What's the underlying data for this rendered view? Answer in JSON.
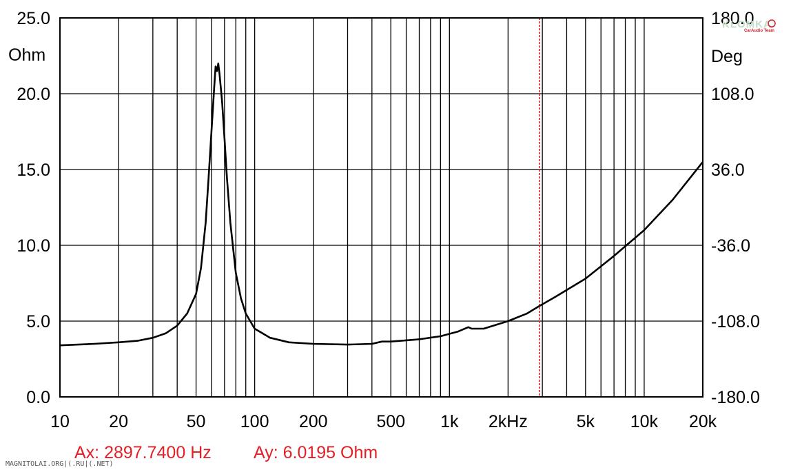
{
  "chart_data": {
    "type": "line",
    "x_scale": "log",
    "xlim": [
      10,
      20000
    ],
    "ylim": [
      0,
      25
    ],
    "y2lim": [
      -180,
      180
    ],
    "left_unit": "Ohm",
    "right_unit": "Deg",
    "y_ticks": [
      "0.0",
      "5.0",
      "10.0",
      "15.0",
      "20.0",
      "25.0"
    ],
    "y2_ticks": [
      "-180.0",
      "-108.0",
      "-36.0",
      "36.0",
      "108.0",
      "180.0"
    ],
    "x_ticks": [
      {
        "value": 10,
        "label": "10"
      },
      {
        "value": 20,
        "label": "20"
      },
      {
        "value": 50,
        "label": "50"
      },
      {
        "value": 100,
        "label": "100"
      },
      {
        "value": 200,
        "label": "200"
      },
      {
        "value": 500,
        "label": "500"
      },
      {
        "value": 1000,
        "label": "1k"
      },
      {
        "value": 2000,
        "label": "2kHz"
      },
      {
        "value": 5000,
        "label": "5k"
      },
      {
        "value": 10000,
        "label": "10k"
      },
      {
        "value": 20000,
        "label": "20k"
      }
    ],
    "grid": true,
    "cursor": {
      "x": 2897.74,
      "y": 6.0195,
      "readout_x": "Ax: 2897.7400 Hz",
      "readout_y": "Ay: 6.0195 Ohm"
    },
    "series": [
      {
        "points": [
          [
            10,
            3.4
          ],
          [
            15,
            3.5
          ],
          [
            20,
            3.6
          ],
          [
            25,
            3.7
          ],
          [
            30,
            3.9
          ],
          [
            35,
            4.2
          ],
          [
            40,
            4.7
          ],
          [
            45,
            5.5
          ],
          [
            50,
            6.8
          ],
          [
            53,
            8.5
          ],
          [
            56,
            11.5
          ],
          [
            58,
            14.5
          ],
          [
            60,
            17.5
          ],
          [
            62,
            20.5
          ],
          [
            63,
            21.8
          ],
          [
            64,
            21.5
          ],
          [
            65,
            22.0
          ],
          [
            66,
            21.3
          ],
          [
            68,
            19.5
          ],
          [
            70,
            17.0
          ],
          [
            72,
            14.5
          ],
          [
            75,
            11.5
          ],
          [
            80,
            8.2
          ],
          [
            85,
            6.5
          ],
          [
            90,
            5.5
          ],
          [
            100,
            4.5
          ],
          [
            120,
            3.9
          ],
          [
            150,
            3.6
          ],
          [
            200,
            3.5
          ],
          [
            300,
            3.45
          ],
          [
            400,
            3.5
          ],
          [
            450,
            3.65
          ],
          [
            500,
            3.65
          ],
          [
            700,
            3.8
          ],
          [
            900,
            4.0
          ],
          [
            1100,
            4.3
          ],
          [
            1250,
            4.6
          ],
          [
            1300,
            4.5
          ],
          [
            1500,
            4.5
          ],
          [
            2000,
            5.0
          ],
          [
            2500,
            5.5
          ],
          [
            2900,
            6.0
          ],
          [
            3500,
            6.6
          ],
          [
            5000,
            7.8
          ],
          [
            7000,
            9.3
          ],
          [
            10000,
            11.0
          ],
          [
            14000,
            13.0
          ],
          [
            20000,
            15.5
          ]
        ]
      }
    ]
  },
  "colors": {
    "curve": "#000000",
    "grid": "#000000",
    "cursor": "#e31f26",
    "readout": "#e31f26",
    "background": "#ffffff",
    "logo": "#c4dcc8",
    "logo_accent": "#d1202a"
  },
  "watermark": {
    "text": "MAGNITOLAI.ORG|(.RU|(.NET)"
  },
  "logo": {
    "text": "KLOMKA",
    "subtitle": "CarAudio Team"
  }
}
